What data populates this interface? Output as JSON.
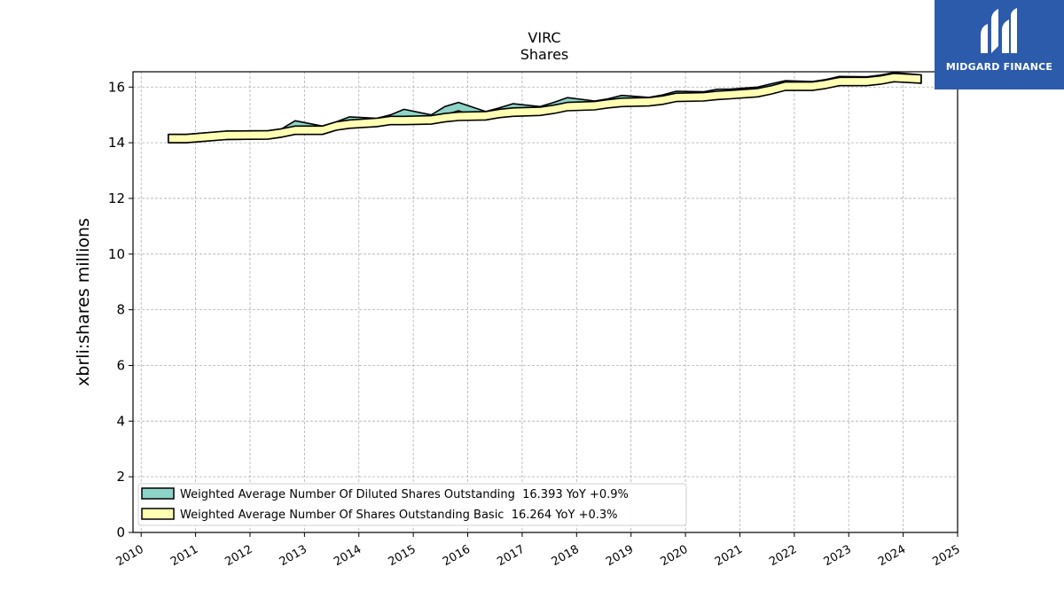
{
  "brand": {
    "name": "MIDGARD FINANCE",
    "color": "#2d5bab"
  },
  "chart_data": {
    "type": "area",
    "title": "VIRC",
    "subtitle": "Shares",
    "xlabel": "",
    "ylabel": "xbrli:shares millions",
    "xlim": [
      2009.85,
      2025.0
    ],
    "ylim": [
      0,
      16.55
    ],
    "x_ticks": [
      "2010",
      "2011",
      "2012",
      "2013",
      "2014",
      "2015",
      "2016",
      "2017",
      "2018",
      "2019",
      "2020",
      "2021",
      "2022",
      "2023",
      "2024",
      "2025"
    ],
    "y_ticks": [
      "0",
      "2",
      "4",
      "6",
      "8",
      "10",
      "12",
      "14",
      "16"
    ],
    "grid": true,
    "legend_position": "lower-left",
    "x": [
      2010.5,
      2010.83,
      2011.58,
      2012.33,
      2012.58,
      2012.83,
      2013.33,
      2013.58,
      2013.83,
      2014.33,
      2014.58,
      2014.83,
      2015.33,
      2015.58,
      2015.83,
      2016.33,
      2016.58,
      2016.83,
      2017.33,
      2017.58,
      2017.83,
      2018.33,
      2018.58,
      2018.83,
      2019.33,
      2019.58,
      2019.83,
      2020.33,
      2020.58,
      2020.83,
      2021.33,
      2021.58,
      2021.83,
      2022.33,
      2022.58,
      2022.83,
      2023.33,
      2023.58,
      2023.83,
      2024.33
    ],
    "series": [
      {
        "name": "Weighted Average Number Of Diluted Shares Outstanding",
        "legend_label": "Weighted Average Number Of Diluted Shares Outstanding  16.393 YoY +0.9%",
        "color": "#8dd3c7",
        "values": [
          14.3,
          14.3,
          14.42,
          14.43,
          14.5,
          14.79,
          14.6,
          14.75,
          14.93,
          14.88,
          15.0,
          15.2,
          15.0,
          15.3,
          15.45,
          15.12,
          15.25,
          15.4,
          15.3,
          15.45,
          15.62,
          15.5,
          15.58,
          15.7,
          15.63,
          15.72,
          15.85,
          15.83,
          15.92,
          15.93,
          16.0,
          16.12,
          16.23,
          16.2,
          16.27,
          16.38,
          16.37,
          16.43,
          16.52,
          16.44
        ]
      },
      {
        "name": "Weighted Average Number Of Shares Outstanding Basic",
        "legend_label": "Weighted Average Number Of Shares Outstanding Basic  16.264 YoY +0.3%",
        "color": "#ffffb3",
        "values": [
          14.3,
          14.3,
          14.42,
          14.43,
          14.5,
          14.6,
          14.6,
          14.75,
          14.82,
          14.88,
          14.95,
          14.95,
          14.97,
          15.05,
          15.1,
          15.12,
          15.2,
          15.25,
          15.28,
          15.35,
          15.45,
          15.48,
          15.55,
          15.6,
          15.62,
          15.68,
          15.78,
          15.8,
          15.85,
          15.88,
          15.95,
          16.05,
          16.18,
          16.18,
          16.25,
          16.35,
          16.35,
          16.4,
          16.49,
          16.44
        ]
      }
    ]
  }
}
